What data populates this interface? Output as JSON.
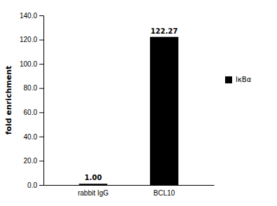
{
  "chart_data": {
    "type": "bar",
    "categories": [
      "rabbit IgG",
      "BCL10"
    ],
    "series": [
      {
        "name": "IκBα",
        "color": "#000000",
        "values": [
          1.0,
          122.27
        ],
        "value_labels": [
          "1.00",
          "122.27"
        ]
      }
    ],
    "ylabel": "fold enrichment",
    "ylim": [
      0,
      140.0
    ],
    "yticks": [
      {
        "value": 0.0,
        "label": "0.0"
      },
      {
        "value": 20.0,
        "label": "20.0"
      },
      {
        "value": 40.0,
        "label": "40.0"
      },
      {
        "value": 60.0,
        "label": "60.0"
      },
      {
        "value": 80.0,
        "label": "80.0"
      },
      {
        "value": 100.0,
        "label": "100.0"
      },
      {
        "value": 120.0,
        "label": "120.0"
      },
      {
        "value": 140.0,
        "label": "140.0"
      }
    ],
    "data_labels": true,
    "legend": "right",
    "grid": false
  }
}
